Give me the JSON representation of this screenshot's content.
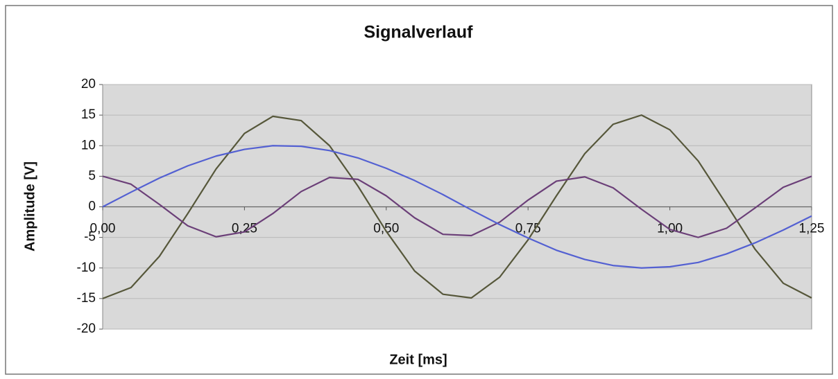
{
  "chart_data": {
    "type": "line",
    "title": "Signalverlauf",
    "x_label": "Zeit [ms]",
    "y_label": "Amplitude [V]",
    "x": [
      0,
      0.05,
      0.1,
      0.15,
      0.2,
      0.25,
      0.3,
      0.35,
      0.4,
      0.45,
      0.5,
      0.55,
      0.6,
      0.65,
      0.7,
      0.75,
      0.8,
      0.85,
      0.9,
      0.95,
      1.0,
      1.05,
      1.1,
      1.15,
      1.2,
      1.25
    ],
    "series": [
      {
        "color": "#56573a",
        "values": [
          -15,
          -13.2,
          -8.1,
          -1.1,
          6.2,
          12.0,
          14.8,
          14.1,
          10.0,
          3.4,
          -4.0,
          -10.5,
          -14.3,
          -14.9,
          -11.5,
          -5.4,
          1.8,
          8.7,
          13.5,
          15.0,
          12.6,
          7.5,
          0.4,
          -6.9,
          -12.5,
          -14.9
        ]
      },
      {
        "color": "#6b3f78",
        "values": [
          5,
          3.7,
          0.4,
          -3.1,
          -4.9,
          -4.1,
          -1.1,
          2.5,
          4.8,
          4.5,
          1.8,
          -1.8,
          -4.5,
          -4.7,
          -2.5,
          1.1,
          4.2,
          4.9,
          3.1,
          -0.4,
          -3.7,
          -5.0,
          -3.5,
          -0.2,
          3.2,
          5.0
        ]
      },
      {
        "color": "#5360d2",
        "values": [
          0,
          2.4,
          4.7,
          6.7,
          8.3,
          9.4,
          10.0,
          9.9,
          9.2,
          8.0,
          6.3,
          4.3,
          2.0,
          -0.5,
          -2.9,
          -5.1,
          -7.1,
          -8.6,
          -9.6,
          -10.0,
          -9.8,
          -9.1,
          -7.7,
          -5.9,
          -3.8,
          -1.5
        ]
      }
    ],
    "xlim": [
      0,
      1.25
    ],
    "xticks": [
      {
        "value": 0,
        "label": "0,00"
      },
      {
        "value": 0.25,
        "label": "0,25"
      },
      {
        "value": 0.5,
        "label": "0,50"
      },
      {
        "value": 0.75,
        "label": "0,75"
      },
      {
        "value": 1.0,
        "label": "1,00"
      },
      {
        "value": 1.25,
        "label": "1,25"
      }
    ],
    "ylim": [
      -20,
      20
    ],
    "yticks": [
      20,
      15,
      10,
      5,
      0,
      -5,
      -10,
      -15,
      -20
    ],
    "grid": true
  }
}
